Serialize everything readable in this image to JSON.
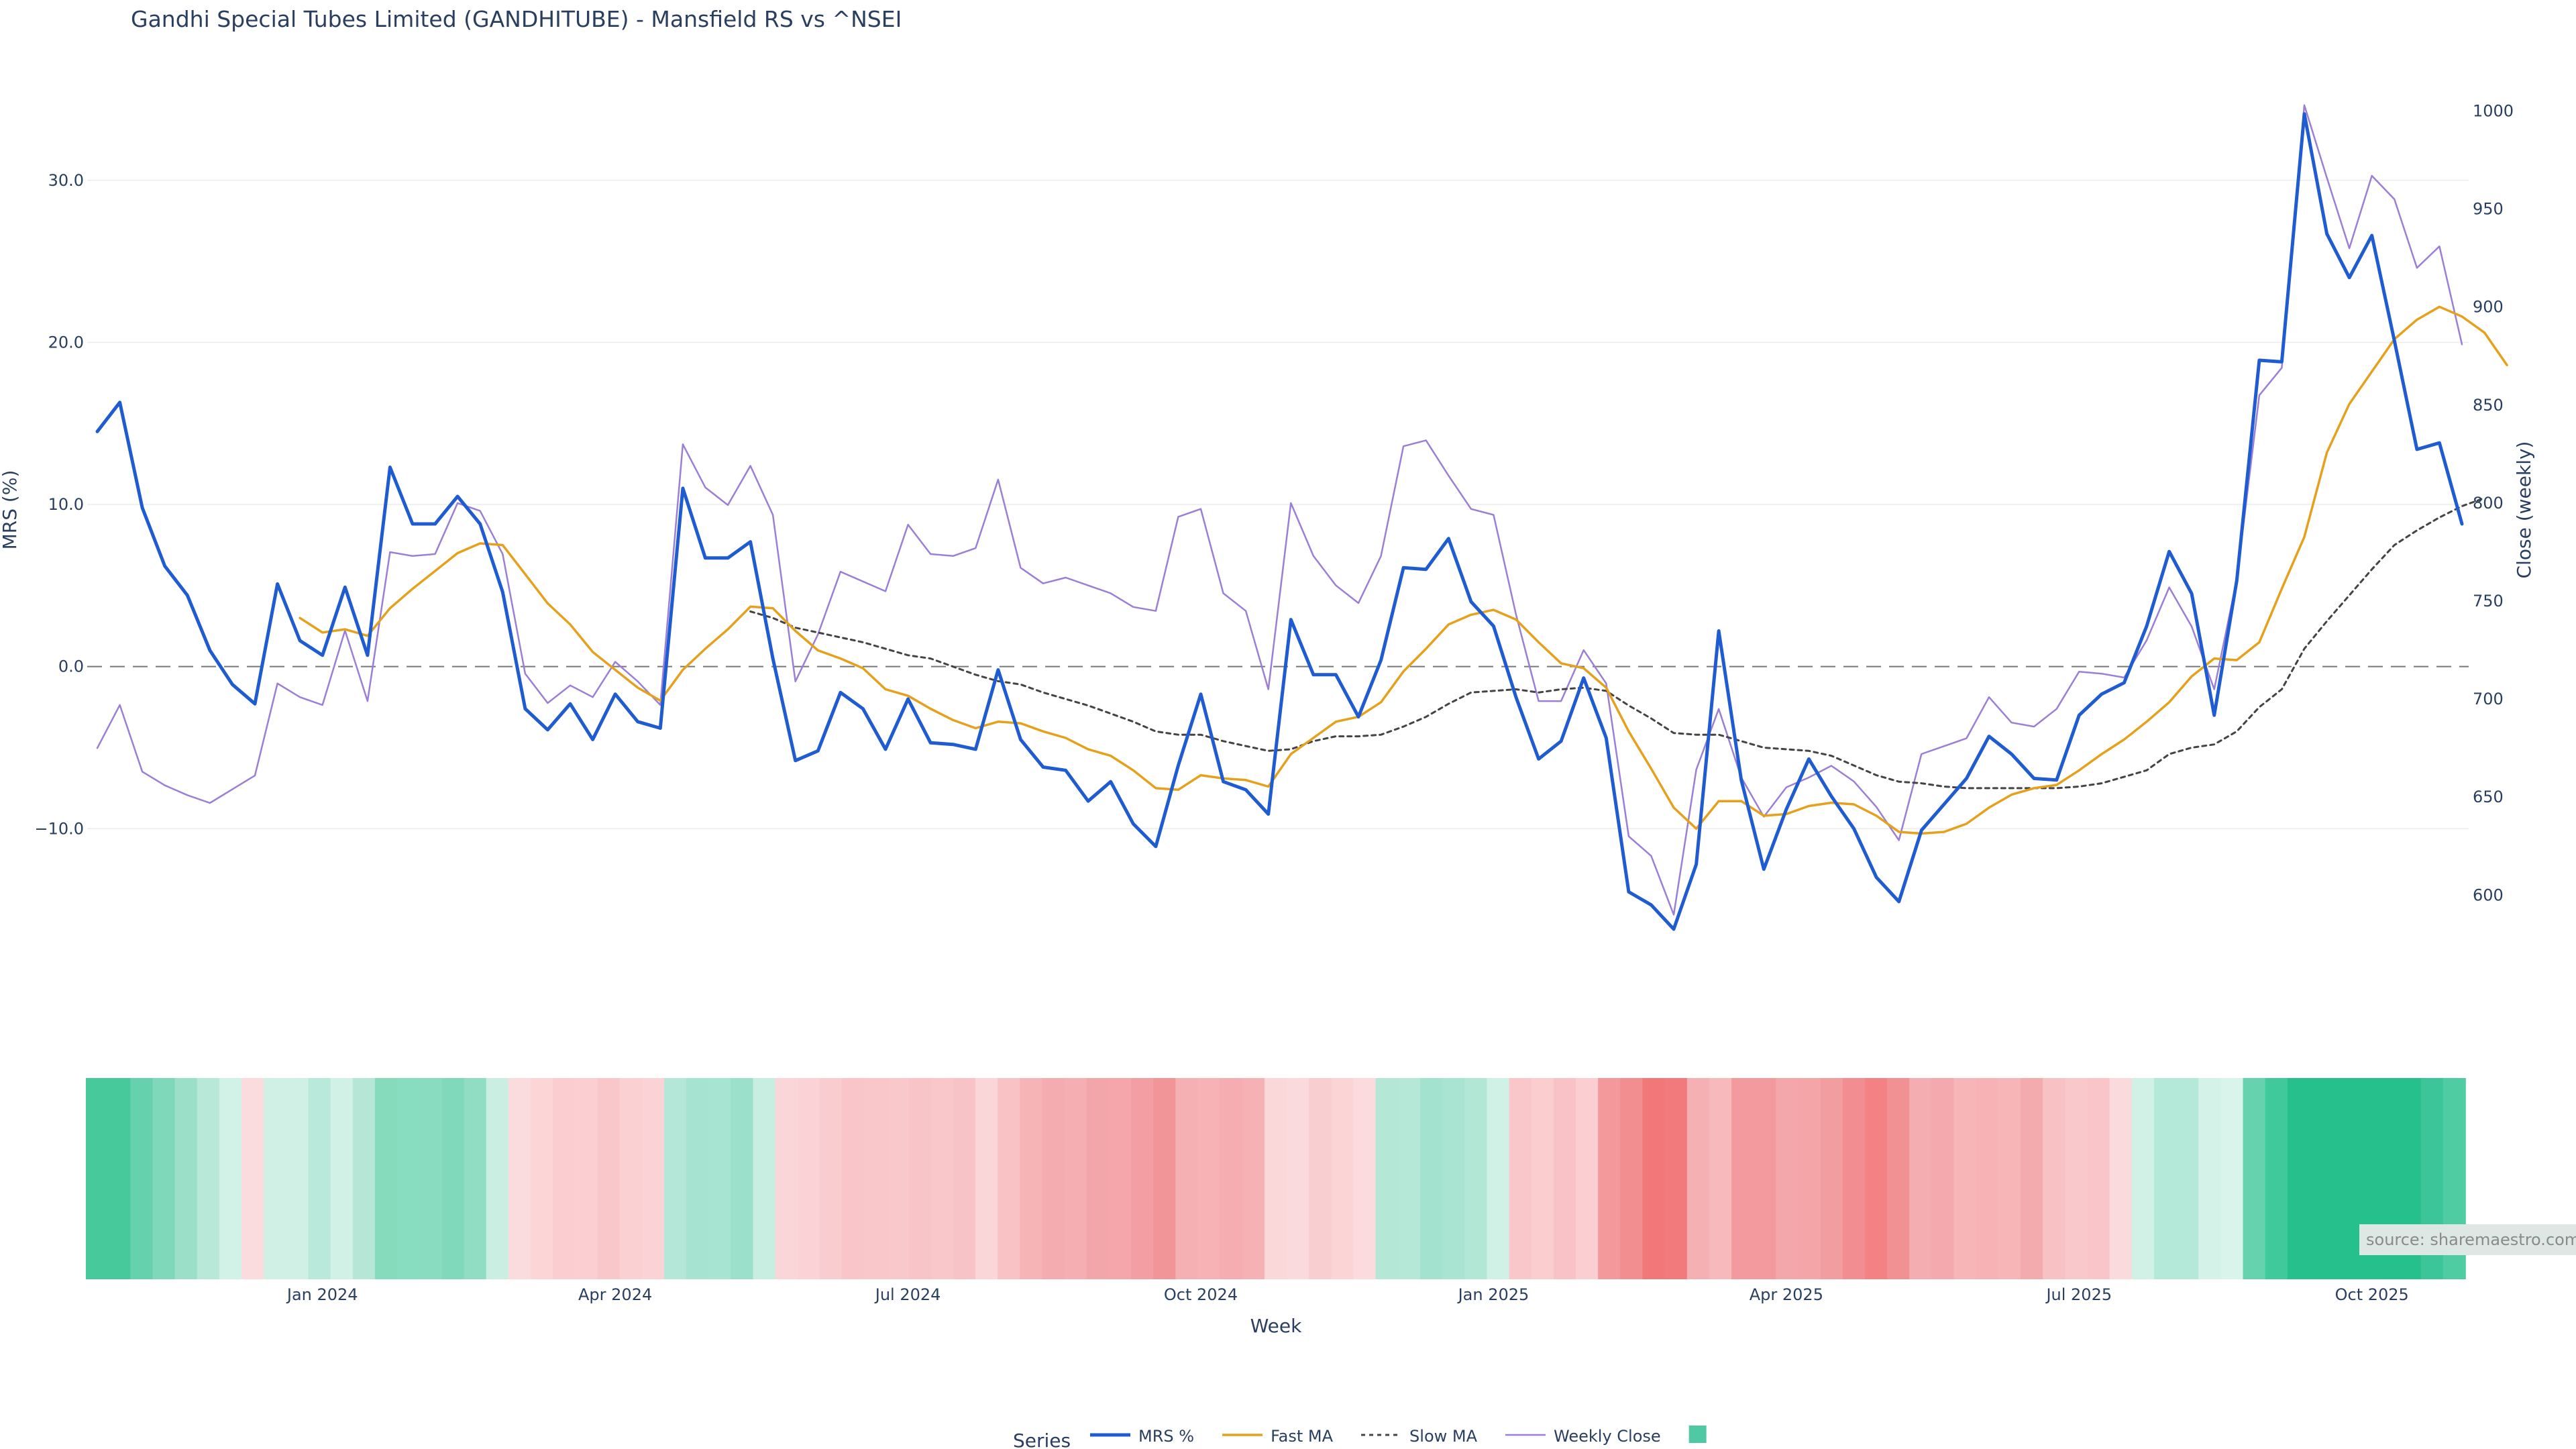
{
  "chart_data": {
    "type": "line",
    "title": "Gandhi Special Tubes Limited (GANDHITUBE) - Mansfield RS vs ^NSEI",
    "xlabel": "Week",
    "ylabel_left": "MRS (%)",
    "ylabel_right": "Close (weekly)",
    "ylim_left": [
      -19.3,
      35
    ],
    "ylim_right": [
      557,
      1006
    ],
    "yticks_left": [
      {
        "value": 30,
        "label": "30.0"
      },
      {
        "value": 20,
        "label": "20.0"
      },
      {
        "value": 10,
        "label": "10.0"
      },
      {
        "value": 0,
        "label": "0.0"
      },
      {
        "value": -10,
        "label": "−10.0"
      }
    ],
    "yticks_right": [
      {
        "value": 1000,
        "label": "1000"
      },
      {
        "value": 950,
        "label": "950"
      },
      {
        "value": 900,
        "label": "900"
      },
      {
        "value": 850,
        "label": "850"
      },
      {
        "value": 800,
        "label": "800"
      },
      {
        "value": 750,
        "label": "750"
      },
      {
        "value": 700,
        "label": "700"
      },
      {
        "value": 650,
        "label": "650"
      },
      {
        "value": 600,
        "label": "600"
      }
    ],
    "xticks": [
      {
        "week": 10,
        "label": "Jan 2024"
      },
      {
        "week": 23,
        "label": "Apr 2024"
      },
      {
        "week": 36,
        "label": "Jul 2024"
      },
      {
        "week": 49,
        "label": "Oct 2024"
      },
      {
        "week": 62,
        "label": "Jan 2025"
      },
      {
        "week": 75,
        "label": "Apr 2025"
      },
      {
        "week": 88,
        "label": "Jul 2025"
      },
      {
        "week": 101,
        "label": "Oct 2025"
      }
    ],
    "zero_line": 0,
    "grid": "horizontal",
    "legend_position": "bottom-center",
    "legend_title": "Series",
    "series": [
      {
        "name": "MRS %",
        "color": "#1f5bd1",
        "axis": "left",
        "values": [
          14.5,
          16.3,
          9.8,
          6.2,
          4.4,
          1.0,
          -1.1,
          -2.3,
          5.1,
          1.6,
          0.7,
          4.9,
          0.7,
          12.3,
          8.8,
          8.8,
          10.5,
          8.8,
          4.6,
          -2.6,
          -3.9,
          -2.3,
          -4.5,
          -1.7,
          -3.4,
          -3.8,
          11.0,
          6.7,
          6.7,
          7.7,
          0.5,
          -5.8,
          -5.2,
          -1.6,
          -2.6,
          -5.1,
          -2.0,
          -4.7,
          -4.8,
          -5.1,
          -0.2,
          -4.5,
          -6.2,
          -6.4,
          -8.3,
          -7.1,
          -9.7,
          -11.1,
          -6.1,
          -1.7,
          -7.1,
          -7.6,
          -9.1,
          2.9,
          -0.5,
          -0.5,
          -3.1,
          0.4,
          6.1,
          6.0,
          7.9,
          4.0,
          2.5,
          -1.9,
          -5.7,
          -4.6,
          -0.7,
          -4.4,
          -13.9,
          -14.7,
          -16.2,
          -12.2,
          2.2,
          -7.0,
          -12.5,
          -8.8,
          -5.7,
          -8.0,
          -10.0,
          -13.0,
          -14.5,
          -10.1,
          -8.5,
          -6.9,
          -4.3,
          -5.4,
          -6.9,
          -7.0,
          -3.0,
          -1.7,
          -1.0,
          2.5,
          7.1,
          4.5,
          -3.0,
          5.3,
          18.9,
          18.8,
          34.1,
          26.7,
          24.0,
          26.6,
          20.1,
          13.4,
          13.8,
          8.8
        ]
      },
      {
        "name": "Fast MA",
        "color": "#e5a11c",
        "axis": "left",
        "values": [
          null,
          null,
          null,
          null,
          null,
          null,
          null,
          null,
          null,
          3.0,
          2.1,
          2.3,
          1.9,
          3.6,
          4.8,
          5.9,
          7.0,
          7.6,
          7.5,
          5.7,
          3.9,
          2.6,
          0.9,
          -0.2,
          -1.3,
          -2.1,
          -0.2,
          1.1,
          2.3,
          3.7,
          3.6,
          2.2,
          1.0,
          0.5,
          -0.1,
          -1.4,
          -1.8,
          -2.6,
          -3.3,
          -3.8,
          -3.4,
          -3.5,
          -4.0,
          -4.4,
          -5.1,
          -5.5,
          -6.4,
          -7.5,
          -7.6,
          -6.7,
          -6.9,
          -7.0,
          -7.4,
          -5.4,
          -4.4,
          -3.4,
          -3.1,
          -2.2,
          -0.3,
          1.1,
          2.6,
          3.2,
          3.5,
          2.9,
          1.5,
          0.2,
          -0.1,
          -1.3,
          -4.0,
          -6.3,
          -8.7,
          -10.0,
          -8.3,
          -8.3,
          -9.2,
          -9.1,
          -8.6,
          -8.4,
          -8.5,
          -9.2,
          -10.2,
          -10.3,
          -10.2,
          -9.7,
          -8.7,
          -7.9,
          -7.5,
          -7.3,
          -6.4,
          -5.4,
          -4.5,
          -3.4,
          -2.2,
          -0.6,
          0.5,
          0.4,
          1.5,
          4.8,
          8.0,
          13.2,
          16.2,
          18.2,
          20.2,
          21.4,
          22.2,
          21.6,
          20.6,
          18.6
        ]
      },
      {
        "name": "Slow MA",
        "color": "#444444",
        "axis": "left",
        "dash": true,
        "values": [
          null,
          null,
          null,
          null,
          null,
          null,
          null,
          null,
          null,
          null,
          null,
          null,
          null,
          null,
          null,
          null,
          null,
          null,
          null,
          null,
          null,
          null,
          null,
          null,
          null,
          null,
          null,
          null,
          null,
          3.4,
          3.0,
          2.4,
          2.1,
          1.8,
          1.5,
          1.1,
          0.7,
          0.5,
          0.0,
          -0.5,
          -0.9,
          -1.1,
          -1.6,
          -2.0,
          -2.4,
          -2.9,
          -3.4,
          -4.0,
          -4.2,
          -4.2,
          -4.6,
          -4.9,
          -5.2,
          -5.1,
          -4.6,
          -4.3,
          -4.3,
          -4.2,
          -3.7,
          -3.1,
          -2.3,
          -1.6,
          -1.5,
          -1.4,
          -1.6,
          -1.4,
          -1.3,
          -1.5,
          -2.4,
          -3.2,
          -4.1,
          -4.2,
          -4.2,
          -4.6,
          -5.0,
          -5.1,
          -5.2,
          -5.5,
          -6.1,
          -6.7,
          -7.1,
          -7.2,
          -7.4,
          -7.5,
          -7.5,
          -7.5,
          -7.5,
          -7.5,
          -7.4,
          -7.2,
          -6.8,
          -6.4,
          -5.4,
          -5.0,
          -4.8,
          -4.0,
          -2.5,
          -1.4,
          1.1,
          2.8,
          4.4,
          6.0,
          7.5,
          8.4,
          9.2,
          9.9,
          10.4
        ]
      },
      {
        "name": "Weekly Close",
        "color": "#9b7fd6",
        "axis": "right",
        "values": [
          675,
          697,
          663,
          656,
          651,
          647,
          654,
          661,
          708,
          701,
          697,
          735,
          699,
          775,
          773,
          774,
          800,
          796,
          774,
          713,
          698,
          707,
          701,
          719,
          709,
          697,
          830,
          808,
          799,
          819,
          794,
          709,
          733,
          765,
          760,
          755,
          789,
          774,
          773,
          777,
          812,
          767,
          759,
          762,
          758,
          754,
          747,
          745,
          793,
          797,
          754,
          745,
          705,
          800,
          773,
          758,
          749,
          773,
          829,
          832,
          814,
          797,
          794,
          743,
          699,
          699,
          725,
          708,
          630,
          620,
          590,
          664,
          695,
          660,
          640,
          655,
          660,
          666,
          658,
          645,
          628,
          672,
          676,
          680,
          701,
          688,
          686,
          695,
          714,
          713,
          711,
          730,
          757,
          737,
          705,
          761,
          855,
          869,
          1003,
          966,
          930,
          967,
          955,
          920,
          931,
          881
        ]
      },
      {
        "name": "",
        "color": "#4fc9a4",
        "axis": "none",
        "legend_only": true
      }
    ],
    "heat_strip": {
      "colors": [
        "#47c99c",
        "#47c99c",
        "#65d1ad",
        "#7fd8b9",
        "#9cdfc9",
        "#b7e8d8",
        "#d2f1e7",
        "#fbdcde",
        "#d0f0e6",
        "#d0f0e6",
        "#b9e9da",
        "#d2f1e6",
        "#b6e7d6",
        "#86dbbd",
        "#88dcbf",
        "#8adcc0",
        "#80d9bb",
        "#91ddc4",
        "#cbeee3",
        "#fbdcde",
        "#fcd5d7",
        "#fbcdd0",
        "#fbcfd2",
        "#f9c6ca",
        "#fbd0d3",
        "#fbd2d5",
        "#b4e7d7",
        "#a6e4d1",
        "#a8e4d2",
        "#9ae0cb",
        "#c8eee2",
        "#fad6d8",
        "#fbd3d6",
        "#f9cccf",
        "#f9c5c8",
        "#f9c6c9",
        "#f8c8cb",
        "#f9c4c8",
        "#f9c7ca",
        "#f8c3c6",
        "#fbd6d9",
        "#f9c2c5",
        "#f6b4b7",
        "#f4acb0",
        "#f5aeb2",
        "#f3a6a9",
        "#f4a6aa",
        "#f29ea2",
        "#f19598",
        "#f5b0b3",
        "#f6b2b5",
        "#f5adb1",
        "#f5b1b4",
        "#fad7d9",
        "#fbdadd",
        "#f9ced1",
        "#fbd4d6",
        "#fbdbdd",
        "#b4e7d6",
        "#b6e8d8",
        "#a3e2ce",
        "#a9e4d2",
        "#b2e6d5",
        "#d0f1e6",
        "#f9c7ca",
        "#fbcdcf",
        "#f9c2c6",
        "#fbcfd2",
        "#f3999c",
        "#f28d90",
        "#f27778",
        "#f27a7c",
        "#f4b0b3",
        "#f7b9bc",
        "#f29a9d",
        "#f29a9d",
        "#f4a7aa",
        "#f4a5a8",
        "#f29ea1",
        "#f28e91",
        "#f48184",
        "#f29194",
        "#f4adb0",
        "#f3a9ad",
        "#f7b5b8",
        "#f7b2b6",
        "#f7b5b8",
        "#f4abae",
        "#f8c1c4",
        "#f9c8cb",
        "#f9c5c8",
        "#fadadc",
        "#d1f1e7",
        "#b4e8d8",
        "#b4e8d8",
        "#d4f2e8",
        "#d9f4ea",
        "#66d3ae",
        "#40ca9c",
        "#26c08c",
        "#26c08c",
        "#26c08c",
        "#26c08c",
        "#26c08c",
        "#26c08c",
        "#3bc598",
        "#50cca3"
      ]
    },
    "source_note": "source: sharemaestro.com"
  }
}
